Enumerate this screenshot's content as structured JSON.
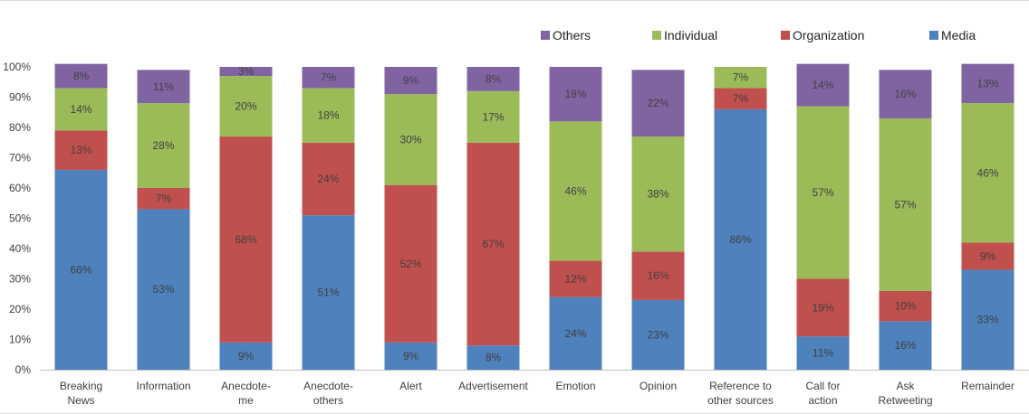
{
  "chart_data": {
    "type": "bar",
    "stacked": true,
    "categories": [
      [
        "Breaking",
        "News"
      ],
      [
        "Information"
      ],
      [
        "Anecdote-",
        "me"
      ],
      [
        "Anecdote-",
        "others"
      ],
      [
        "Alert"
      ],
      [
        "Advertisement"
      ],
      [
        "Emotion"
      ],
      [
        "Opinion"
      ],
      [
        "Reference to",
        "other sources"
      ],
      [
        "Call for",
        "action"
      ],
      [
        "Ask",
        "Retweeting"
      ],
      [
        "Remainder"
      ]
    ],
    "series": [
      {
        "name": "Media",
        "color": "#4f81bd",
        "values": [
          66,
          53,
          9,
          51,
          9,
          8,
          24,
          23,
          86,
          11,
          16,
          33
        ],
        "labels": [
          "66%",
          "53%",
          "9%",
          "51%",
          "9%",
          "8%",
          "24%",
          "23%",
          "86%",
          "11%",
          "16%",
          "33%"
        ]
      },
      {
        "name": "Organization",
        "color": "#c0504d",
        "values": [
          13,
          7,
          68,
          24,
          52,
          67,
          12,
          16,
          7,
          19,
          10,
          9
        ],
        "labels": [
          "13%",
          "7%",
          "68%",
          "24%",
          "52%",
          "67%",
          "12%",
          "16%",
          "7%",
          "19%",
          "10%",
          "9%"
        ]
      },
      {
        "name": "Individual",
        "color": "#9bbb59",
        "values": [
          14,
          28,
          20,
          18,
          30,
          17,
          46,
          38,
          7,
          57,
          57,
          46
        ],
        "labels": [
          "14%",
          "28%",
          "20%",
          "18%",
          "30%",
          "17%",
          "46%",
          "38%",
          "7%",
          "57%",
          "57%",
          "46%"
        ]
      },
      {
        "name": "Others",
        "color": "#8064a2",
        "values": [
          8,
          11,
          3,
          7,
          9,
          8,
          18,
          22,
          0,
          14,
          16,
          13
        ],
        "labels": [
          "8%",
          "11%",
          "3%",
          "7%",
          "9%",
          "8%",
          "18%",
          "22%",
          "",
          "14%",
          "16%",
          "13%"
        ]
      }
    ],
    "legend_order": [
      "Others",
      "Individual",
      "Organization",
      "Media"
    ],
    "legend_position": "top-right",
    "ylim": [
      0,
      100
    ],
    "yticks": [
      "0%",
      "10%",
      "20%",
      "30%",
      "40%",
      "50%",
      "60%",
      "70%",
      "80%",
      "90%",
      "100%"
    ],
    "grid": false,
    "title": "",
    "xlabel": "",
    "ylabel": ""
  }
}
